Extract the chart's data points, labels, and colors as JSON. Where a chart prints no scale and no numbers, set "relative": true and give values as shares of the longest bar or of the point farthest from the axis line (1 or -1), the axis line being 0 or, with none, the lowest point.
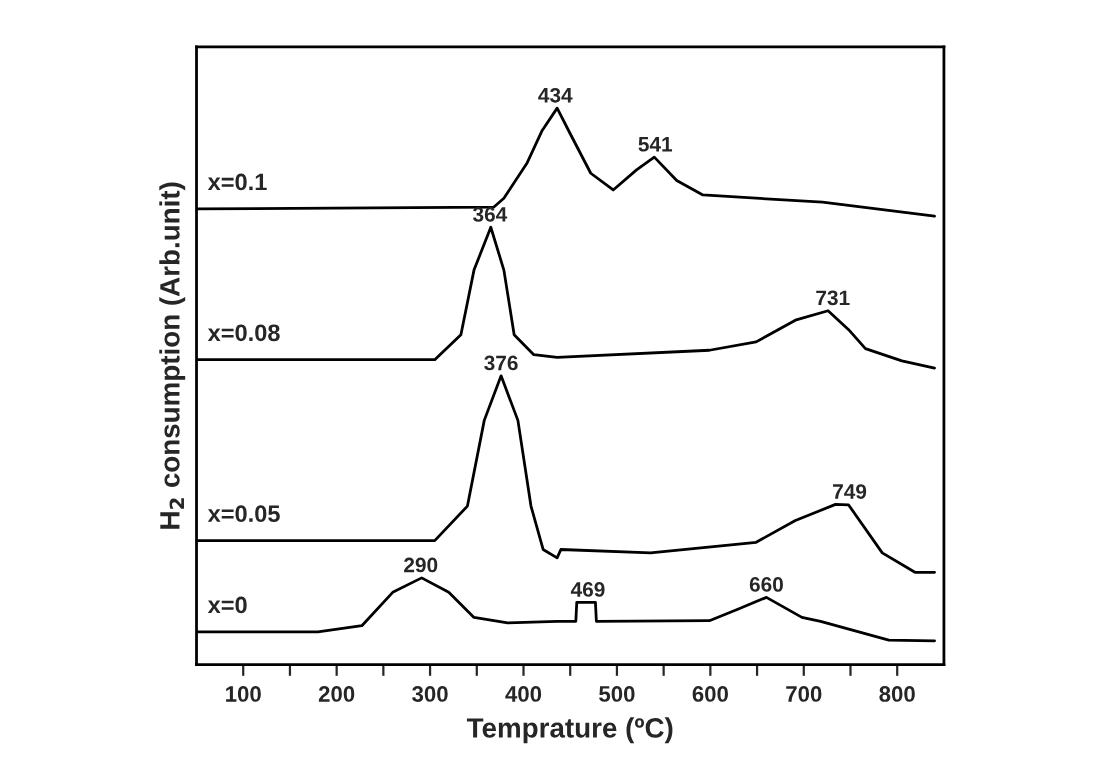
{
  "chart_data": {
    "type": "line",
    "relative": true,
    "xlabel": "Temprature (ºC)",
    "ylabel": "H$_{2}$ consumption (Arb.unit)",
    "xlim": [
      50,
      850
    ],
    "xticks": [
      100,
      {
        "value": 150,
        "label": null
      },
      200,
      {
        "value": 250,
        "label": null
      },
      300,
      {
        "value": 350,
        "label": null
      },
      400,
      {
        "value": 450,
        "label": null
      },
      500,
      {
        "value": 550,
        "label": null
      },
      600,
      {
        "value": 650,
        "label": null
      },
      700,
      {
        "value": 750,
        "label": null
      },
      800
    ],
    "grid": false,
    "legend": false,
    "marker": "none",
    "line_style": "solid",
    "series": [
      {
        "name": "x=0",
        "color": "#000000",
        "x": [
          50,
          180,
          227,
          260,
          291,
          320,
          347,
          383,
          436,
          456,
          457,
          477,
          478,
          599,
          630,
          660,
          698,
          718,
          791,
          840
        ],
        "values": [
          0.059,
          0.059,
          0.07,
          0.13,
          0.156,
          0.13,
          0.085,
          0.075,
          0.078,
          0.078,
          0.112,
          0.112,
          0.078,
          0.079,
          0.1,
          0.121,
          0.085,
          0.078,
          0.044,
          0.043
        ]
      },
      {
        "name": "x=0.05",
        "color": "#000000",
        "x": [
          50,
          305,
          340,
          358,
          376,
          394,
          408,
          421,
          436,
          440,
          536,
          649,
          691,
          734,
          748,
          784,
          819,
          840
        ],
        "values": [
          0.223,
          0.223,
          0.285,
          0.439,
          0.519,
          0.439,
          0.285,
          0.207,
          0.192,
          0.207,
          0.201,
          0.22,
          0.259,
          0.288,
          0.287,
          0.201,
          0.166,
          0.166
        ]
      },
      {
        "name": "x=0.08",
        "color": "#000000",
        "x": [
          50,
          305,
          333,
          347,
          365,
          379,
          390,
          411,
          436,
          599,
          649,
          691,
          726,
          748,
          766,
          805,
          840
        ],
        "values": [
          0.548,
          0.548,
          0.593,
          0.709,
          0.786,
          0.709,
          0.593,
          0.557,
          0.552,
          0.565,
          0.58,
          0.619,
          0.636,
          0.602,
          0.568,
          0.546,
          0.533
        ]
      },
      {
        "name": "x=0.1",
        "color": "#000000",
        "x": [
          50,
          368,
          379,
          404,
          420,
          436,
          450,
          472,
          496,
          521,
          540,
          564,
          592,
          720,
          840
        ],
        "values": [
          0.819,
          0.822,
          0.838,
          0.902,
          0.96,
          1.0,
          0.954,
          0.883,
          0.853,
          0.889,
          0.912,
          0.87,
          0.844,
          0.831,
          0.806
        ]
      }
    ],
    "annotations": [
      {
        "text": "290",
        "x": 290,
        "y": 0.156
      },
      {
        "text": "469",
        "x": 469,
        "y": 0.112
      },
      {
        "text": "660",
        "x": 660,
        "y": 0.121
      },
      {
        "text": "376",
        "x": 376,
        "y": 0.519
      },
      {
        "text": "749",
        "x": 749,
        "y": 0.288
      },
      {
        "text": "364",
        "x": 364,
        "y": 0.786
      },
      {
        "text": "731",
        "x": 731,
        "y": 0.636
      },
      {
        "text": "434",
        "x": 434,
        "y": 1.0
      },
      {
        "text": "541",
        "x": 541,
        "y": 0.912
      }
    ]
  }
}
